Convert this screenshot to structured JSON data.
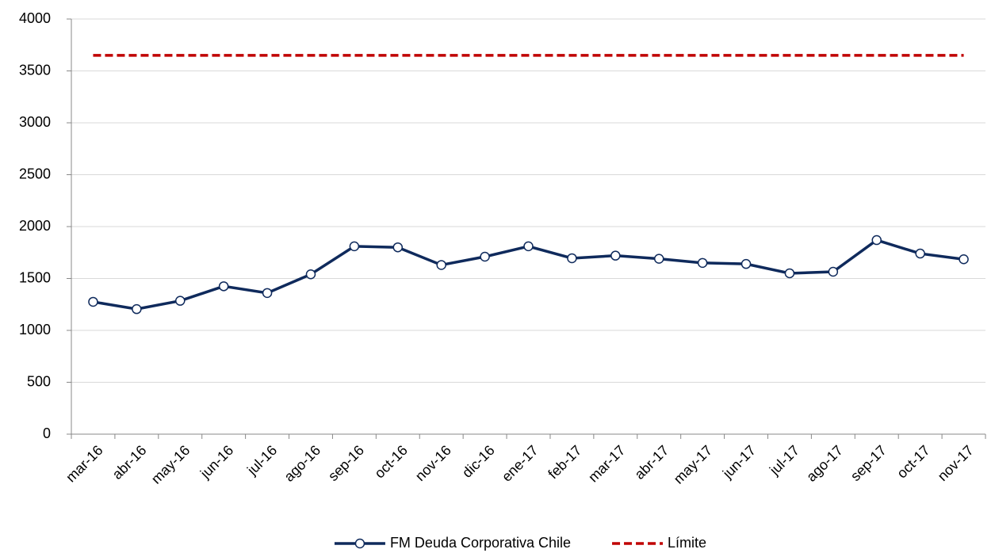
{
  "chart_data": {
    "type": "line",
    "categories": [
      "mar-16",
      "abr-16",
      "may-16",
      "jun-16",
      "jul-16",
      "ago-16",
      "sep-16",
      "oct-16",
      "nov-16",
      "dic-16",
      "ene-17",
      "feb-17",
      "mar-17",
      "abr-17",
      "may-17",
      "jun-17",
      "jul-17",
      "ago-17",
      "sep-17",
      "oct-17",
      "nov-17"
    ],
    "series": [
      {
        "name": "FM Deuda Corporativa Chile",
        "color": "#0f2a5c",
        "line_style": "solid",
        "marker": "circle",
        "values": [
          1275,
          1205,
          1285,
          1425,
          1360,
          1540,
          1810,
          1800,
          1630,
          1710,
          1810,
          1695,
          1720,
          1690,
          1650,
          1640,
          1550,
          1565,
          1870,
          1740,
          1685
        ]
      },
      {
        "name": "Límite",
        "color": "#c00000",
        "line_style": "dashed",
        "marker": "none",
        "values": [
          3650,
          3650,
          3650,
          3650,
          3650,
          3650,
          3650,
          3650,
          3650,
          3650,
          3650,
          3650,
          3650,
          3650,
          3650,
          3650,
          3650,
          3650,
          3650,
          3650,
          3650
        ]
      }
    ],
    "ylim": [
      0,
      4000
    ],
    "yticks": [
      0,
      500,
      1000,
      1500,
      2000,
      2500,
      3000,
      3500,
      4000
    ],
    "grid": true,
    "legend": "bottom"
  }
}
